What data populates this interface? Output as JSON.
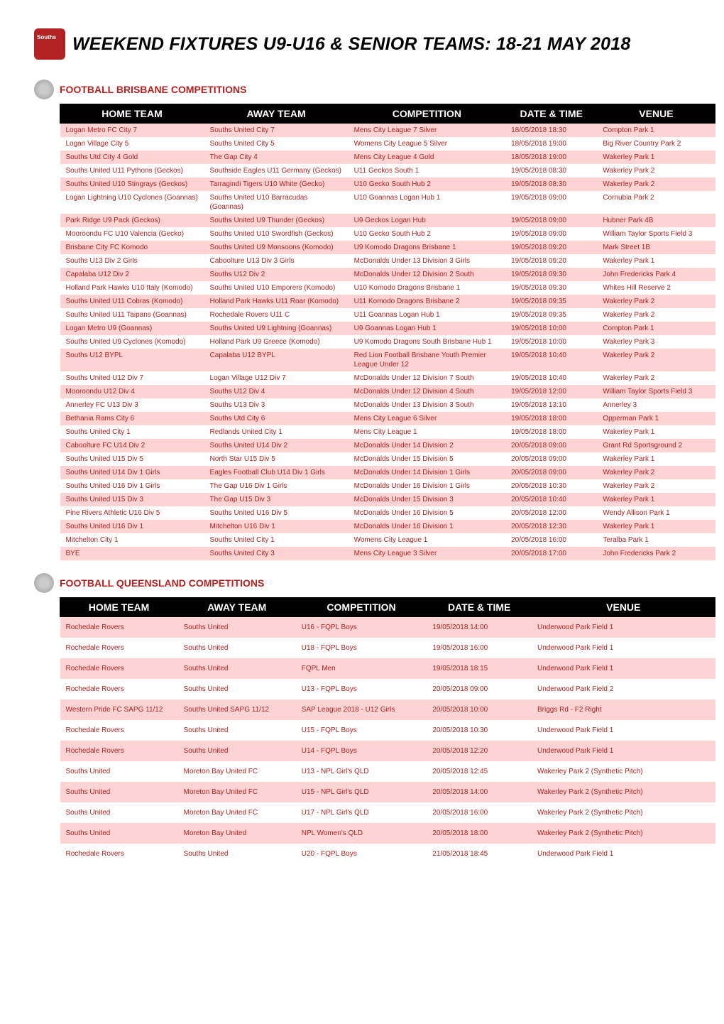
{
  "page_title": "WEEKEND FIXTURES U9-U16 & SENIOR TEAMS: 18-21 MAY 2018",
  "columns": [
    "HOME TEAM",
    "AWAY TEAM",
    "COMPETITION",
    "DATE & TIME",
    "VENUE"
  ],
  "sections": [
    {
      "label": "FOOTBALL BRISBANE COMPETITIONS",
      "rows": [
        [
          "Logan Metro FC City 7",
          "Souths United City 7",
          "Mens City League 7 Silver",
          "18/05/2018 18:30",
          "Compton Park 1"
        ],
        [
          "Logan Village City 5",
          "Souths United City 5",
          "Womens City League 5 Silver",
          "18/05/2018 19:00",
          "Big River Country Park 2"
        ],
        [
          "Souths Utd City 4 Gold",
          "The Gap City 4",
          "Mens City League 4 Gold",
          "18/05/2018 19:00",
          "Wakerley Park 1"
        ],
        [
          "Souths United U11 Pythons (Geckos)",
          "Southside Eagles U11 Germany (Geckos)",
          "U11 Geckos South 1",
          "19/05/2018 08:30",
          "Wakerley Park 2"
        ],
        [
          "Souths United U10 Stingrays (Geckos)",
          "Tarragindi Tigers U10 White (Gecko)",
          "U10 Gecko South Hub 2",
          "19/05/2018 08:30",
          "Wakerley Park 2"
        ],
        [
          "Logan Lightning U10 Cyclones (Goannas)",
          "Souths United U10 Barracudas (Goannas)",
          "U10 Goannas Logan Hub 1",
          "19/05/2018 09:00",
          "Cornubia Park 2"
        ],
        [
          "Park Ridge U9 Pack (Geckos)",
          "Souths United U9 Thunder (Geckos)",
          "U9 Geckos Logan Hub",
          "19/05/2018 09:00",
          "Hubner Park 4B"
        ],
        [
          "Mooroondu FC U10 Valencia (Gecko)",
          "Souths United U10 Swordfish (Geckos)",
          "U10 Gecko South Hub 2",
          "19/05/2018 09:00",
          "William Taylor Sports Field 3"
        ],
        [
          "Brisbane City FC Komodo",
          "Souths United U9 Monsoons (Komodo)",
          "U9 Komodo Dragons Brisbane 1",
          "19/05/2018 09:20",
          "Mark Street 1B"
        ],
        [
          "Souths U13 Div 2 Girls",
          "Caboolture U13 Div 3 Girls",
          "McDonalds Under 13 Division 3 Girls",
          "19/05/2018 09:20",
          "Wakerley Park 1"
        ],
        [
          "Capalaba U12 Div 2",
          "Souths U12 Div 2",
          "McDonalds Under 12 Division 2 South",
          "19/05/2018 09:30",
          "John Fredericks Park 4"
        ],
        [
          "Holland Park Hawks U10 Italy (Komodo)",
          "Souths United U10 Emporers (Komodo)",
          "U10 Komodo Dragons Brisbane 1",
          "19/05/2018 09:30",
          "Whites Hill Reserve 2"
        ],
        [
          "Souths United U11 Cobras (Komodo)",
          "Holland Park Hawks U11 Roar (Komodo)",
          "U11 Komodo Dragons Brisbane 2",
          "19/05/2018 09:35",
          "Wakerley Park 2"
        ],
        [
          "Souths United U11 Taipans (Goannas)",
          "Rochedale Rovers U11 C",
          "U11 Goannas Logan Hub 1",
          "19/05/2018 09:35",
          "Wakerley Park 2"
        ],
        [
          "Logan Metro U9 (Goannas)",
          "Souths United U9 Lightning (Goannas)",
          "U9 Goannas Logan Hub 1",
          "19/05/2018 10:00",
          "Compton Park 1"
        ],
        [
          "Souths United U9 Cyclones (Komodo)",
          "Holland Park U9 Greece (Komodo)",
          "U9 Komodo Dragons South Brisbane Hub 1",
          "19/05/2018 10:00",
          "Wakerley Park 3"
        ],
        [
          "Souths U12 BYPL",
          "Capalaba U12 BYPL",
          "Red Lion Football Brisbane Youth Premier League Under 12",
          "19/05/2018 10:40",
          "Wakerley Park 2"
        ],
        [
          "Souths United U12 Div 7",
          "Logan Village U12 Div 7",
          "McDonalds Under 12 Division 7 South",
          "19/05/2018 10:40",
          "Wakerley Park 2"
        ],
        [
          "Mooroondu U12 Div 4",
          "Souths U12 Div 4",
          "McDonalds Under 12 Division 4 South",
          "19/05/2018 12:00",
          "William Taylor Sports Field 3"
        ],
        [
          "Annerley FC U13 Div 3",
          "Souths U13 Div 3",
          "McDonalds Under 13 Division 3 South",
          "19/05/2018 13:10",
          "Annerley 3"
        ],
        [
          "Bethania Rams City 6",
          "Souths Utd City 6",
          "Mens City League 6 Silver",
          "19/05/2018 18:00",
          "Opperman Park 1"
        ],
        [
          "Souths United City 1",
          "Redlands United City 1",
          "Mens City League 1",
          "19/05/2018 18:00",
          "Wakerley Park 1"
        ],
        [
          "Caboolture FC U14 Div 2",
          "Souths United U14 Div 2",
          "McDonalds Under 14 Division 2",
          "20/05/2018 09:00",
          "Grant Rd Sportsground 2"
        ],
        [
          "Souths United U15 Div 5",
          "North Star U15 Div 5",
          "McDonalds Under 15 Division 5",
          "20/05/2018 09:00",
          "Wakerley Park 1"
        ],
        [
          "Souths United U14 Div 1 Girls",
          "Eagles Football Club U14 Div 1 Girls",
          "McDonalds Under 14 Division 1 Girls",
          "20/05/2018 09:00",
          "Wakerley Park 2"
        ],
        [
          "Souths United U16 Div 1 Girls",
          "The Gap U16 Div 1 Girls",
          "McDonalds Under 16 Division 1 Girls",
          "20/05/2018 10:30",
          "Wakerley Park 2"
        ],
        [
          "Souths United U15 Div 3",
          "The Gap U15 Div 3",
          "McDonalds Under 15 Division 3",
          "20/05/2018 10:40",
          "Wakerley Park 1"
        ],
        [
          "Pine Rivers Athletic U16 Div 5",
          "Souths United U16 Div 5",
          "McDonalds Under 16 Division 5",
          "20/05/2018 12:00",
          "Wendy Allison Park 1"
        ],
        [
          "Souths United U16 Div 1",
          "Mitchelton U16 Div 1",
          "McDonalds Under 16 Division 1",
          "20/05/2018 12:30",
          "Wakerley Park 1"
        ],
        [
          "Mitchelton City 1",
          "Souths United City 1",
          "Womens City League 1",
          "20/05/2018 16:00",
          "Teralba Park 1"
        ],
        [
          "BYE",
          "Souths United City 3",
          "Mens City League 3 Silver",
          "20/05/2018 17:00",
          "John Fredericks Park 2"
        ]
      ]
    },
    {
      "label": "FOOTBALL QUEENSLAND COMPETITIONS",
      "rows": [
        [
          "Rochedale Rovers",
          "Souths United",
          "U16 - FQPL Boys",
          "19/05/2018 14:00",
          "Underwood Park Field 1"
        ],
        [
          "Rochedale Rovers",
          "Souths United",
          "U18 - FQPL Boys",
          "19/05/2018 16:00",
          "Underwood Park Field 1"
        ],
        [
          "Rochedale Rovers",
          "Souths United",
          "FQPL Men",
          "19/05/2018 18:15",
          "Underwood Park Field 1"
        ],
        [
          "Rochedale Rovers",
          "Souths United",
          "U13 - FQPL Boys",
          "20/05/2018 09:00",
          "Underwood Park Field 2"
        ],
        [
          "Western Pride FC SAPG 11/12",
          "Souths United SAPG 11/12",
          "SAP League 2018 - U12 Girls",
          "20/05/2018 10:00",
          "Briggs Rd - F2 Right"
        ],
        [
          "Rochedale Rovers",
          "Souths United",
          "U15 - FQPL Boys",
          "20/05/2018 10:30",
          "Underwood Park Field 1"
        ],
        [
          "Rochedale Rovers",
          "Souths United",
          "U14 - FQPL Boys",
          "20/05/2018 12:20",
          "Underwood Park Field 1"
        ],
        [
          "Souths United",
          "Moreton Bay United FC",
          "U13 - NPL Girl's QLD",
          "20/05/2018 12:45",
          "Wakerley Park 2 (Synthetic Pitch)"
        ],
        [
          "Souths United",
          "Moreton Bay United FC",
          "U15 - NPL Girl's QLD",
          "20/05/2018 14:00",
          "Wakerley Park 2 (Synthetic Pitch)"
        ],
        [
          "Souths United",
          "Moreton Bay United FC",
          "U17 - NPL Girl's QLD",
          "20/05/2018 16:00",
          "Wakerley Park 2 (Synthetic Pitch)"
        ],
        [
          "Souths United",
          "Moreton Bay United",
          "NPL Women's QLD",
          "20/05/2018 18:00",
          "Wakerley Park 2 (Synthetic Pitch)"
        ],
        [
          "Rochedale Rovers",
          "Souths United",
          "U20 - FQPL Boys",
          "21/05/2018 18:45",
          "Underwood Park Field 1"
        ]
      ]
    }
  ],
  "colors": {
    "accent": "#b22222",
    "row_alt": "#fed3d3",
    "header_bg": "#000000",
    "header_fg": "#ffffff"
  }
}
